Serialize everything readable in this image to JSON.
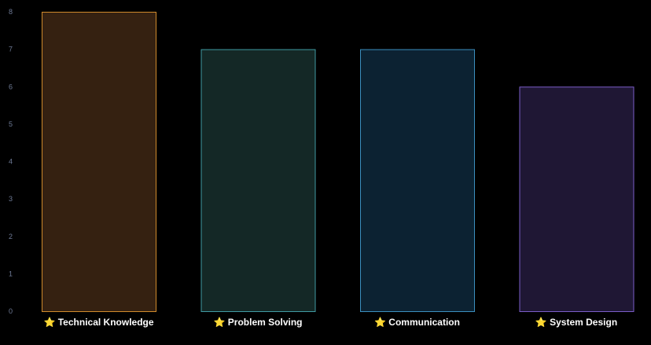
{
  "chart_data": {
    "type": "bar",
    "categories": [
      "Technical Knowledge",
      "Problem Solving",
      "Communication",
      "System Design"
    ],
    "values": [
      8,
      7,
      7,
      6
    ],
    "category_icon": "star-icon",
    "category_icon_glyph": "⭐",
    "ylim": [
      0,
      8
    ],
    "yticks": [
      0,
      1,
      2,
      3,
      4,
      5,
      6,
      7,
      8
    ],
    "grid": false,
    "colors": {
      "background": "#000000",
      "tick_text": "#6e7a96",
      "label_text": "#ffffff",
      "bars": [
        {
          "stroke": "#d08a2c",
          "fill": "#352111"
        },
        {
          "stroke": "#3f9aa3",
          "fill": "#142826"
        },
        {
          "stroke": "#3b8fbf",
          "fill": "#0c2232"
        },
        {
          "stroke": "#7a5cc7",
          "fill": "#1f1734"
        }
      ]
    }
  }
}
